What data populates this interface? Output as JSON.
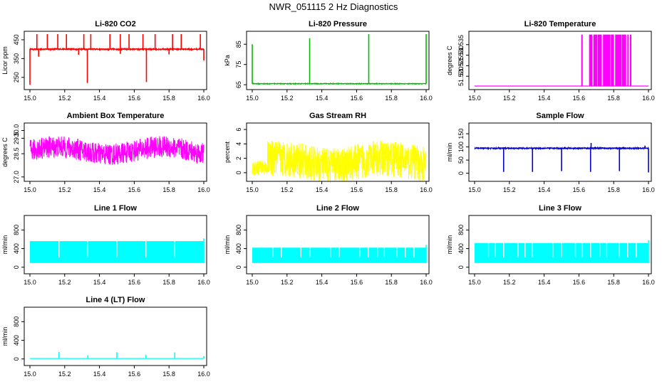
{
  "page_title": "NWR_051115  2 Hz Diagnostics",
  "chart_data": [
    {
      "type": "line",
      "title": "Li-820 CO2",
      "ylabel": "Licor ppm",
      "color": "#ff0000",
      "xlim": [
        15.0,
        16.0
      ],
      "ylim": [
        200,
        480
      ],
      "xticks": [
        "15.0",
        "15.2",
        "15.4",
        "15.6",
        "15.8",
        "16.0"
      ],
      "yticks": [
        250,
        350,
        450
      ],
      "series": {
        "kind": "spiky",
        "baseline": 400,
        "noise": 3,
        "up_spikes": [
          {
            "x": 15.04,
            "y": 480
          },
          {
            "x": 15.1,
            "y": 480
          },
          {
            "x": 15.16,
            "y": 480
          },
          {
            "x": 15.21,
            "y": 480
          },
          {
            "x": 15.31,
            "y": 480
          },
          {
            "x": 15.35,
            "y": 480
          },
          {
            "x": 15.46,
            "y": 480
          },
          {
            "x": 15.52,
            "y": 480
          },
          {
            "x": 15.57,
            "y": 480
          },
          {
            "x": 15.65,
            "y": 480
          },
          {
            "x": 15.72,
            "y": 480
          },
          {
            "x": 15.82,
            "y": 480
          },
          {
            "x": 15.87,
            "y": 480
          },
          {
            "x": 15.98,
            "y": 480
          }
        ],
        "down_spikes": [
          {
            "x": 15.0,
            "y": 210
          },
          {
            "x": 15.33,
            "y": 220
          },
          {
            "x": 15.67,
            "y": 225
          },
          {
            "x": 16.0,
            "y": 340
          },
          {
            "x": 15.05,
            "y": 360
          },
          {
            "x": 15.28,
            "y": 370
          },
          {
            "x": 15.52,
            "y": 375
          },
          {
            "x": 15.8,
            "y": 372
          }
        ]
      }
    },
    {
      "type": "line",
      "title": "Li-820 Pressure",
      "ylabel": "kPa",
      "color": "#00bb00",
      "xlim": [
        15.0,
        16.0
      ],
      "ylim": [
        64,
        90
      ],
      "xticks": [
        "15.0",
        "15.2",
        "15.4",
        "15.6",
        "15.8",
        "16.0"
      ],
      "yticks": [
        65,
        75,
        85
      ],
      "series": {
        "kind": "spiky",
        "baseline": 65.5,
        "noise": 0.15,
        "up_spikes": [
          {
            "x": 15.0,
            "y": 85
          },
          {
            "x": 15.33,
            "y": 88
          },
          {
            "x": 15.67,
            "y": 90
          },
          {
            "x": 16.0,
            "y": 90
          }
        ],
        "down_spikes": []
      }
    },
    {
      "type": "line",
      "title": "Li-820 Temperature",
      "ylabel": "degrees C",
      "color": "#ff00ff",
      "xlim": [
        15.0,
        16.0
      ],
      "ylim": [
        51.515,
        51.54
      ],
      "xticks": [
        "15.0",
        "15.2",
        "15.4",
        "15.6",
        "15.8",
        "16.0"
      ],
      "yticks": [
        "51.520",
        "51.525",
        "51.530",
        "51.535"
      ],
      "series": {
        "kind": "step",
        "low": 51.515,
        "high": 51.54,
        "high_intervals": [
          [
            15.615,
            15.62
          ],
          [
            15.66,
            15.675
          ],
          [
            15.685,
            15.705
          ],
          [
            15.71,
            15.73
          ],
          [
            15.74,
            15.78
          ],
          [
            15.785,
            15.8
          ],
          [
            15.81,
            15.845
          ],
          [
            15.85,
            15.87
          ],
          [
            15.88,
            15.885
          ],
          [
            15.895,
            15.9
          ]
        ]
      }
    },
    {
      "type": "line",
      "title": "Ambient Box Temperature",
      "ylabel": "degrees C",
      "color": "#ff00ff",
      "xlim": [
        15.0,
        16.0
      ],
      "ylim": [
        26.9,
        30.3
      ],
      "xticks": [
        "15.0",
        "15.2",
        "15.4",
        "15.6",
        "15.8",
        "16.0"
      ],
      "yticks": [
        "27.0",
        "28.5",
        "29.5",
        "30.0"
      ],
      "series": {
        "kind": "noise",
        "center": 28.7,
        "amp": 0.7,
        "wave": 0.25
      }
    },
    {
      "type": "line",
      "title": "Gas Stream RH",
      "ylabel": "percent",
      "color": "#ffff00",
      "xlim": [
        15.0,
        16.0
      ],
      "ylim": [
        -0.8,
        6.5
      ],
      "xticks": [
        "15.0",
        "15.2",
        "15.4",
        "15.6",
        "15.8",
        "16.0"
      ],
      "yticks": [
        0,
        2,
        4,
        6
      ],
      "series": {
        "kind": "noise",
        "center": 1.5,
        "amp": 2.5,
        "wave": 0.5
      }
    },
    {
      "type": "line",
      "title": "Sample Flow",
      "ylabel": "ml/min",
      "color": "#0000cc",
      "xlim": [
        15.0,
        16.0
      ],
      "ylim": [
        -20,
        180
      ],
      "xticks": [
        "15.0",
        "15.2",
        "15.4",
        "15.6",
        "15.8",
        "16.0"
      ],
      "yticks": [
        0,
        50,
        100,
        150
      ],
      "series": {
        "kind": "spiky",
        "baseline": 95,
        "noise": 2,
        "up_spikes": [
          {
            "x": 15.67,
            "y": 115
          },
          {
            "x": 15.98,
            "y": 105
          }
        ],
        "down_spikes": [
          {
            "x": 15.167,
            "y": 5
          },
          {
            "x": 15.333,
            "y": 5
          },
          {
            "x": 15.5,
            "y": 8
          },
          {
            "x": 15.667,
            "y": 5
          },
          {
            "x": 15.833,
            "y": 8
          },
          {
            "x": 16.0,
            "y": 3
          }
        ]
      }
    },
    {
      "type": "area",
      "title": "Line 1 Flow",
      "ylabel": "ml/min",
      "color": "#00ffff",
      "xlim": [
        15.0,
        16.0
      ],
      "ylim": [
        -80,
        1050
      ],
      "xticks": [
        "15.0",
        "15.2",
        "15.4",
        "15.6",
        "15.8",
        "16.0"
      ],
      "yticks": [
        0,
        400,
        800
      ],
      "series": {
        "kind": "band",
        "low": 90,
        "high": 560,
        "gaps": [
          15.167,
          15.333,
          15.5,
          15.667,
          15.833
        ]
      }
    },
    {
      "type": "area",
      "title": "Line 2 Flow",
      "ylabel": "ml/min",
      "color": "#00ffff",
      "xlim": [
        15.0,
        16.0
      ],
      "ylim": [
        -80,
        1050
      ],
      "xticks": [
        "15.0",
        "15.2",
        "15.4",
        "15.6",
        "15.8",
        "16.0"
      ],
      "yticks": [
        0,
        400,
        800
      ],
      "series": {
        "kind": "band",
        "low": 90,
        "high": 420,
        "gaps": [
          15.12,
          15.167,
          15.28,
          15.333,
          15.45,
          15.5,
          15.62,
          15.667,
          15.72,
          15.76,
          15.833,
          15.88,
          15.93
        ]
      }
    },
    {
      "type": "area",
      "title": "Line 3 Flow",
      "ylabel": "ml/min",
      "color": "#00ffff",
      "xlim": [
        15.0,
        16.0
      ],
      "ylim": [
        -80,
        1050
      ],
      "xticks": [
        "15.0",
        "15.2",
        "15.4",
        "15.6",
        "15.8",
        "16.0"
      ],
      "yticks": [
        0,
        400,
        800
      ],
      "series": {
        "kind": "band",
        "low": 90,
        "high": 520,
        "gaps": [
          15.08,
          15.12,
          15.167,
          15.25,
          15.29,
          15.333,
          15.45,
          15.5,
          15.58,
          15.62,
          15.667,
          15.72,
          15.76,
          15.833,
          15.88,
          15.93
        ]
      }
    },
    {
      "type": "line",
      "title": "Line 4 (LT) Flow",
      "ylabel": "ml/min",
      "color": "#00ffff",
      "xlim": [
        15.0,
        16.0
      ],
      "ylim": [
        -80,
        1050
      ],
      "xticks": [
        "15.0",
        "15.2",
        "15.4",
        "15.6",
        "15.8",
        "16.0"
      ],
      "yticks": [
        0,
        400,
        800
      ],
      "series": {
        "kind": "spiky",
        "baseline": 10,
        "noise": 1,
        "up_spikes": [
          {
            "x": 15.167,
            "y": 150
          },
          {
            "x": 15.333,
            "y": 80
          },
          {
            "x": 15.5,
            "y": 145
          },
          {
            "x": 15.667,
            "y": 90
          },
          {
            "x": 15.833,
            "y": 140
          },
          {
            "x": 16.0,
            "y": 60
          }
        ],
        "down_spikes": []
      }
    }
  ]
}
